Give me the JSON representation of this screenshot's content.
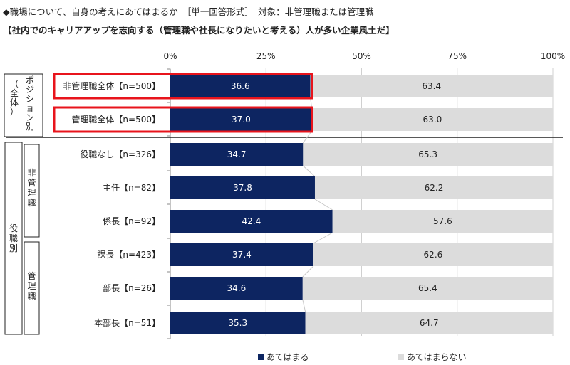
{
  "header": {
    "line1": "◆職場について、自身の考えにあてはまるか　［単一回答形式］　対象：非管理職または管理職",
    "line2": "【社内でのキャリアアップを志向する（管理職や社長になりたいと考える）人が多い企業風土だ】"
  },
  "groups": {
    "position": "ポジション別（全体）",
    "position_chars": [
      "ポ",
      "ジ",
      "シ",
      "ョ",
      "ン",
      "別"
    ],
    "position_sub": [
      "（",
      "全",
      "体",
      "）"
    ],
    "role": "役職別",
    "role_chars": [
      "役",
      "職",
      "別"
    ],
    "nonmanager": "非管理職",
    "nonmanager_chars": [
      "非",
      "管",
      "理",
      "職"
    ],
    "manager": "管理職",
    "manager_chars": [
      "管",
      "理",
      "職"
    ]
  },
  "chart_data": {
    "type": "bar",
    "stacked": true,
    "orientation": "horizontal",
    "xlim": [
      0,
      100
    ],
    "x_ticks": [
      "0%",
      "25%",
      "50%",
      "75%",
      "100%"
    ],
    "categories": [
      "非管理職全体【n=500】",
      "管理職全体【n=500】",
      "役職なし【n=326】",
      "主任【n=82】",
      "係長【n=92】",
      "課長【n=423】",
      "部長【n=26】",
      "本部長【n=51】"
    ],
    "highlighted": [
      0,
      1
    ],
    "series": [
      {
        "name": "あてはまる",
        "color": "#0d2561",
        "values": [
          36.6,
          37.0,
          34.7,
          37.8,
          42.4,
          37.4,
          34.6,
          35.3
        ]
      },
      {
        "name": "あてはまらない",
        "color": "#dcdcdc",
        "values": [
          63.4,
          63.0,
          65.3,
          62.2,
          57.6,
          62.6,
          65.4,
          64.7
        ]
      }
    ],
    "legend_position": "bottom",
    "highlight_color": "#e8141c"
  }
}
